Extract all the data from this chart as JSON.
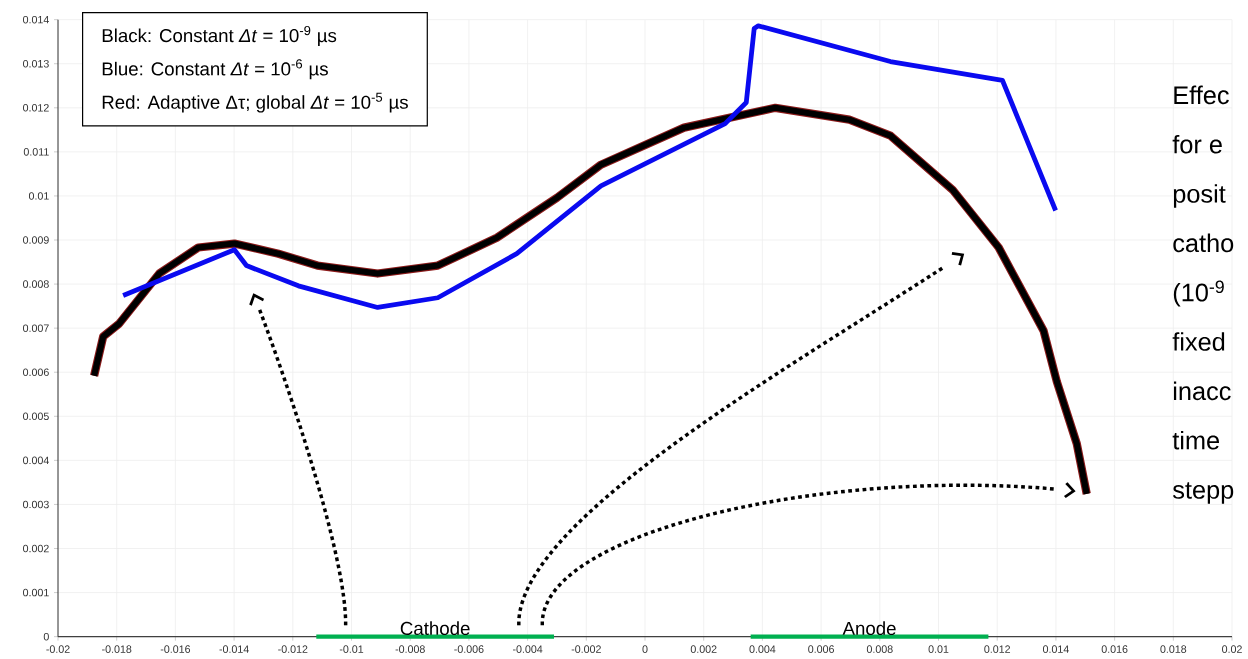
{
  "chart_data": {
    "type": "line",
    "xlim": [
      -0.02,
      0.02
    ],
    "ylim": [
      0,
      0.014
    ],
    "xticks": [
      -0.02,
      -0.018,
      -0.016,
      -0.014,
      -0.012,
      -0.01,
      -0.008,
      -0.006,
      -0.004,
      -0.002,
      0,
      0.002,
      0.004,
      0.006,
      0.008,
      0.01,
      0.012,
      0.014,
      0.016,
      0.018,
      0.02
    ],
    "yticks": [
      0,
      0.001,
      0.002,
      0.003,
      0.004,
      0.005,
      0.006,
      0.007,
      0.008,
      0.009,
      0.01,
      0.011,
      0.012,
      0.013,
      0.014
    ],
    "grid": true,
    "marker": "none",
    "line_style": "solid",
    "series": [
      {
        "color": "#8b1a1a",
        "x": [
          -0.01877,
          -0.01846,
          -0.01792,
          -0.01655,
          -0.01522,
          -0.01399,
          -0.01249,
          -0.01116,
          -0.00911,
          -0.00706,
          -0.00505,
          -0.003,
          -0.0015,
          0.00133,
          0.00444,
          0.00696,
          0.00836,
          0.01048,
          0.01205,
          0.01358,
          0.01403,
          0.01471,
          0.01505
        ],
        "values": [
          0.00592,
          0.00681,
          0.0071,
          0.00824,
          0.00883,
          0.00892,
          0.00869,
          0.00842,
          0.00824,
          0.00842,
          0.00905,
          0.00996,
          0.01071,
          0.01155,
          0.012,
          0.01173,
          0.01137,
          0.01014,
          0.00883,
          0.00694,
          0.00579,
          0.00438,
          0.00324
        ]
      },
      {
        "color": "#000000",
        "x": [
          -0.01877,
          -0.01846,
          -0.01792,
          -0.01655,
          -0.01522,
          -0.01399,
          -0.01249,
          -0.01116,
          -0.00911,
          -0.00706,
          -0.00505,
          -0.003,
          -0.0015,
          0.00133,
          0.00444,
          0.00696,
          0.00836,
          0.01048,
          0.01205,
          0.01358,
          0.01403,
          0.01471,
          0.01505
        ],
        "values": [
          0.00592,
          0.00681,
          0.0071,
          0.00824,
          0.00883,
          0.00892,
          0.00869,
          0.00842,
          0.00824,
          0.00842,
          0.00905,
          0.00996,
          0.01071,
          0.01155,
          0.012,
          0.01173,
          0.01137,
          0.01014,
          0.00883,
          0.00694,
          0.00579,
          0.00438,
          0.00324
        ]
      },
      {
        "color": "#0a0af0",
        "x": [
          -0.01778,
          -0.01399,
          -0.01358,
          -0.01181,
          -0.00911,
          -0.00706,
          -0.00437,
          -0.0015,
          0.00273,
          0.00345,
          0.00372,
          0.00386,
          0.00836,
          0.01218,
          0.01399
        ],
        "values": [
          0.00774,
          0.00878,
          0.00842,
          0.00796,
          0.00747,
          0.00769,
          0.00869,
          0.01023,
          0.01164,
          0.01212,
          0.0138,
          0.01386,
          0.01305,
          0.01262,
          0.00967
        ]
      },
      {
        "name": "Cathode",
        "color": "#00b050",
        "x": [
          -0.0112,
          -0.0031
        ],
        "values": [
          0,
          0
        ]
      },
      {
        "name": "Anode",
        "color": "#00b050",
        "x": [
          0.0036,
          0.0117
        ],
        "values": [
          0,
          0
        ]
      }
    ],
    "annotations": [
      "Black: Constant *Δt*  = 10$^{-9}$ µs",
      "Blue: Constant *Δt* = 10$^{-6}$ µs",
      "Red: Adaptive Δτ; global *Δt* = 10$^{-5}$ µs",
      "Effec",
      "for e",
      "posit",
      "catho",
      "(10$^{-9}$",
      "fixed",
      "inacc",
      "time",
      "stepp"
    ]
  }
}
